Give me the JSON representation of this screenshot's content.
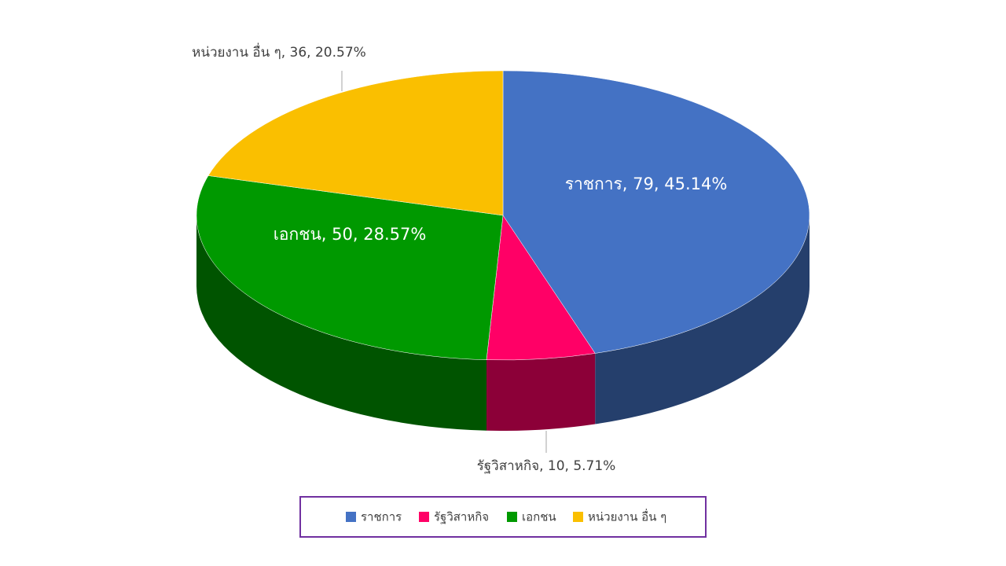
{
  "chart_data": {
    "type": "pie3d",
    "categories": [
      "ราชการ",
      "รัฐวิสาหกิจ",
      "เอกชน",
      "หน่วยงาน อื่น ๆ"
    ],
    "values": [
      79,
      10,
      50,
      36
    ],
    "percentages": [
      45.14,
      5.71,
      28.57,
      20.57
    ],
    "value_labels": [
      "ราชการ, 79, 45.14%",
      "รัฐวิสาหกิจ, 10, 5.71%",
      "เอกชน, 50, 28.57%",
      "หน่วยงาน อื่น ๆ, 36, 20.57%"
    ],
    "colors": [
      "#4472c4",
      "#ff0066",
      "#009900",
      "#fabf00"
    ],
    "legend": "bottom"
  }
}
